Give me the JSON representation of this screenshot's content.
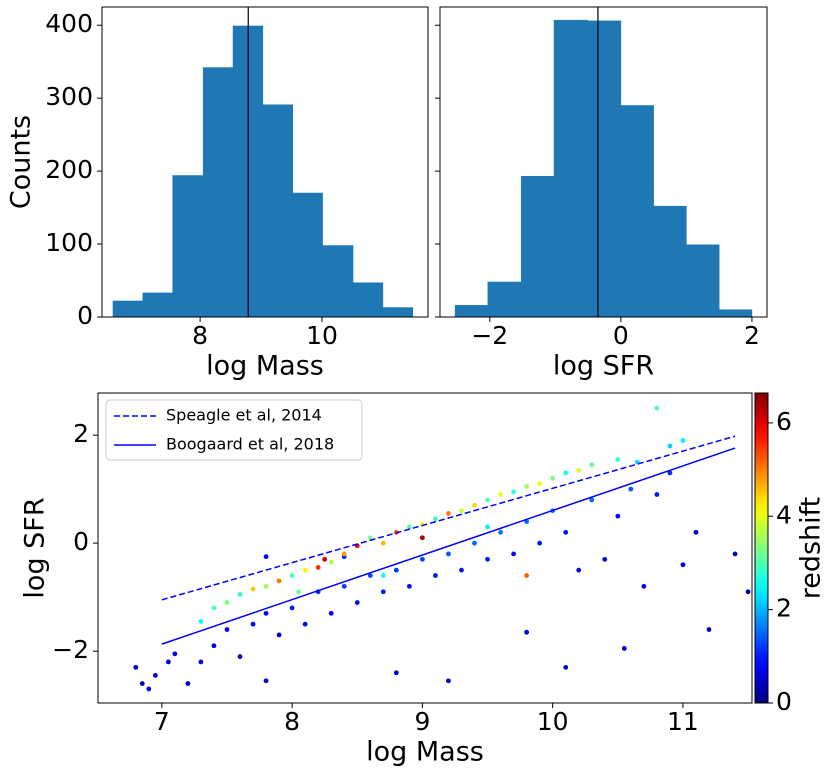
{
  "chart_data": [
    {
      "type": "histogram",
      "xlabel": "log Mass",
      "ylabel": "Counts",
      "color": "#1f77b4",
      "bins": [
        6.57,
        7.06,
        7.55,
        8.05,
        8.54,
        9.03,
        9.52,
        10.01,
        10.51,
        11.0,
        11.49
      ],
      "values": [
        22,
        33,
        194,
        342,
        399,
        291,
        170,
        98,
        47,
        13
      ],
      "vline": 8.79,
      "xlim": [
        6.39,
        11.74
      ],
      "xticks": [
        8,
        10
      ],
      "ylim": [
        0,
        425
      ],
      "yticks": [
        0,
        100,
        200,
        300,
        400
      ]
    },
    {
      "type": "histogram",
      "xlabel": "log SFR",
      "color": "#1f77b4",
      "bins": [
        -2.53,
        -2.03,
        -1.52,
        -1.02,
        -0.51,
        0.0,
        0.5,
        1.0,
        1.5,
        2.0
      ],
      "values": [
        16,
        48,
        193,
        407,
        406,
        290,
        152,
        99,
        10
      ],
      "vline": -0.35,
      "xlim": [
        -2.76,
        2.23
      ],
      "xticks": [
        {
          "value": -2,
          "label": "−2"
        },
        0,
        2
      ],
      "ylim": [
        0,
        425
      ],
      "yticks": [
        0,
        100,
        200,
        300,
        400
      ],
      "show_ytick_labels": false
    },
    {
      "type": "scatter",
      "xlabel": "log Mass",
      "ylabel": "log SFR",
      "xlim": [
        6.51,
        11.53
      ],
      "xticks": [
        7,
        8,
        9,
        10,
        11
      ],
      "ylim": [
        -2.96,
        2.78
      ],
      "yticks": [
        {
          "value": -2,
          "label": "−2"
        },
        0,
        2
      ],
      "legend": "upper left",
      "lines": [
        {
          "name": "Speagle et al, 2014",
          "color": "#0000ff",
          "linestyle": "dashed",
          "x": [
            7,
            11.4
          ],
          "values": [
            -1.05,
            1.98
          ]
        },
        {
          "name": "Boogaard et al, 2018",
          "color": "#0000ff",
          "linestyle": "solid",
          "x": [
            7,
            11.4
          ],
          "values": [
            -1.87,
            1.76
          ]
        }
      ],
      "colorbar": {
        "label": "redshift",
        "cmap": "jet",
        "lim": [
          0,
          6.64
        ],
        "ticks": [
          0,
          2,
          4,
          6
        ]
      },
      "points": {
        "x": [
          6.8,
          6.85,
          6.9,
          6.95,
          7.05,
          7.1,
          7.2,
          7.3,
          7.4,
          7.5,
          7.6,
          7.7,
          7.8,
          7.9,
          8.0,
          8.1,
          8.2,
          8.3,
          8.4,
          8.5,
          8.6,
          8.7,
          8.8,
          8.9,
          9.0,
          9.1,
          9.2,
          9.3,
          9.4,
          9.5,
          9.6,
          9.7,
          9.8,
          9.9,
          10.0,
          10.1,
          10.2,
          10.3,
          10.4,
          10.5,
          10.6,
          10.7,
          10.8,
          10.9,
          11.0,
          11.1,
          11.2,
          11.4,
          11.5,
          9.8,
          8.8,
          9.2,
          10.55,
          10.1,
          7.8,
          8.4,
          7.8,
          7.3,
          7.4,
          7.5,
          7.6,
          7.7,
          7.8,
          7.9,
          8.0,
          8.1,
          8.2,
          8.3,
          8.4,
          8.5,
          8.6,
          8.7,
          8.8,
          8.9,
          9.0,
          9.1,
          9.2,
          9.3,
          9.4,
          9.5,
          9.6,
          9.7,
          9.8,
          9.9,
          10.0,
          10.1,
          10.2,
          10.3,
          10.5,
          10.8,
          10.9,
          11.0,
          9.8,
          8.25,
          9.0,
          10.65,
          8.7,
          8.05,
          9.5
        ],
        "values": [
          -2.3,
          -2.6,
          -2.7,
          -2.45,
          -2.2,
          -2.05,
          -2.6,
          -2.2,
          -1.9,
          -1.6,
          -2.1,
          -1.5,
          -1.3,
          -1.7,
          -1.2,
          -1.5,
          -0.9,
          -1.3,
          -0.8,
          -1.1,
          -0.6,
          -0.9,
          -0.5,
          -0.8,
          -0.3,
          -0.6,
          -0.2,
          -0.5,
          0.0,
          -0.3,
          0.2,
          -0.2,
          0.4,
          0.0,
          0.6,
          0.2,
          -0.5,
          0.8,
          -0.3,
          0.5,
          1.0,
          -0.8,
          0.9,
          1.3,
          -0.4,
          0.2,
          -1.6,
          -0.2,
          -0.9,
          -1.65,
          -2.4,
          -2.55,
          -1.95,
          -2.3,
          -2.55,
          -0.25,
          -0.25,
          -1.45,
          -1.2,
          -1.1,
          -0.95,
          -0.85,
          -0.8,
          -0.7,
          -0.6,
          -0.5,
          -0.45,
          -0.35,
          -0.2,
          -0.05,
          0.1,
          0.0,
          0.2,
          0.3,
          0.35,
          0.45,
          0.55,
          0.6,
          0.7,
          0.8,
          0.9,
          0.95,
          1.05,
          1.1,
          1.2,
          1.3,
          1.35,
          1.45,
          1.55,
          2.5,
          1.8,
          1.9,
          -0.6,
          -0.3,
          0.1,
          1.5,
          -0.6,
          -0.9,
          0.3
        ],
        "c": [
          0.5,
          0.4,
          0.6,
          0.5,
          0.5,
          0.6,
          0.4,
          0.7,
          0.6,
          0.8,
          0.5,
          0.9,
          0.8,
          0.6,
          1.0,
          0.7,
          1.1,
          0.8,
          1.2,
          0.9,
          1.3,
          1.0,
          1.2,
          0.9,
          1.3,
          1.0,
          1.4,
          0.9,
          1.5,
          1.0,
          1.6,
          0.9,
          1.5,
          1.0,
          1.6,
          0.9,
          0.7,
          1.5,
          0.6,
          0.8,
          1.4,
          0.5,
          1.0,
          1.1,
          0.6,
          0.5,
          0.4,
          0.4,
          0.3,
          0.5,
          0.5,
          0.4,
          0.6,
          0.4,
          0.5,
          1.0,
          0.8,
          2.5,
          3.0,
          3.3,
          2.8,
          4.5,
          3.5,
          5.0,
          3.0,
          4.2,
          5.5,
          3.6,
          4.8,
          5.8,
          3.3,
          4.6,
          5.3,
          3.0,
          4.2,
          2.9,
          5.0,
          3.8,
          4.4,
          3.1,
          4.0,
          2.7,
          3.5,
          4.1,
          3.3,
          2.6,
          3.9,
          3.2,
          2.8,
          3.0,
          2.2,
          2.4,
          5.2,
          6.1,
          6.4,
          2.3,
          2.6,
          3.2,
          2.4
        ]
      }
    }
  ]
}
